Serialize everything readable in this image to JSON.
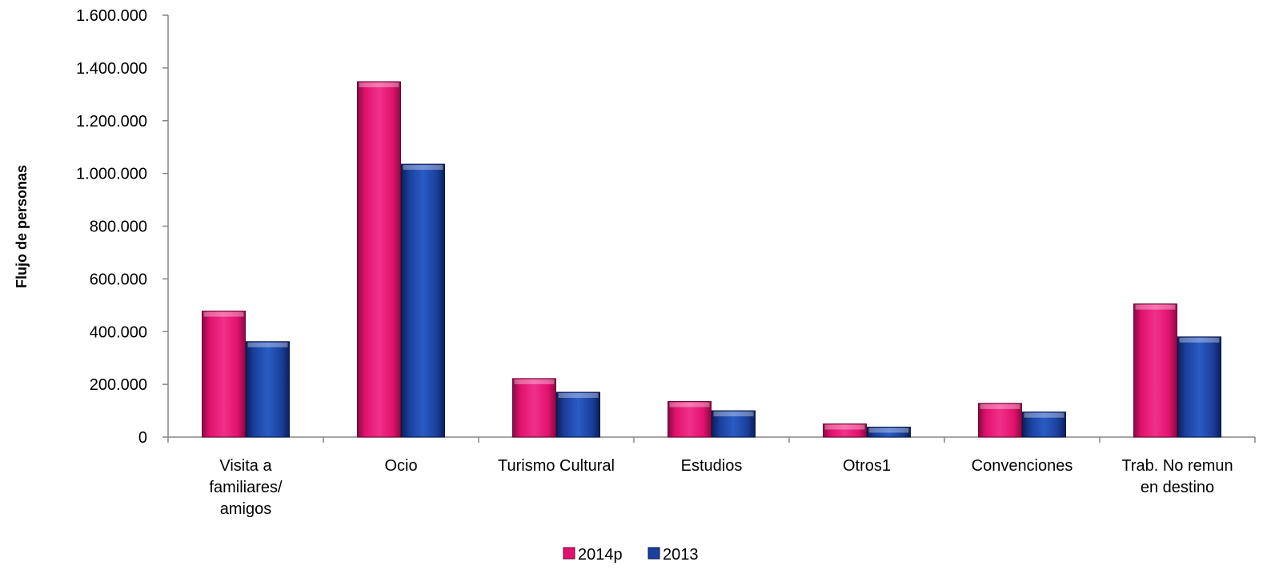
{
  "chart_data": {
    "type": "bar",
    "ylabel": "Flujo de personas",
    "xlabel": "",
    "ylim": [
      0,
      1600000
    ],
    "yticks": [
      0,
      200000,
      400000,
      600000,
      800000,
      1000000,
      1200000,
      1400000,
      1600000
    ],
    "ytick_labels": [
      "0",
      "200.000",
      "400.000",
      "600.000",
      "800.000",
      "1.000.000",
      "1.200.000",
      "1.400.000",
      "1.600.000"
    ],
    "categories": [
      [
        "Visita a",
        "familiares/",
        "amigos"
      ],
      [
        "Ocio"
      ],
      [
        "Turismo Cultural"
      ],
      [
        "Estudios"
      ],
      [
        "Otros1"
      ],
      [
        "Convenciones"
      ],
      [
        "Trab. No remun",
        "en destino"
      ]
    ],
    "series": [
      {
        "name": "2014p",
        "color": "#e0126e",
        "values": [
          478000,
          1348000,
          222000,
          135000,
          50000,
          128000,
          505000
        ]
      },
      {
        "name": "2013",
        "color": "#1a3f9c",
        "values": [
          362000,
          1035000,
          170000,
          100000,
          38000,
          95000,
          380000
        ]
      }
    ],
    "legend_position": "bottom",
    "grid": false
  }
}
